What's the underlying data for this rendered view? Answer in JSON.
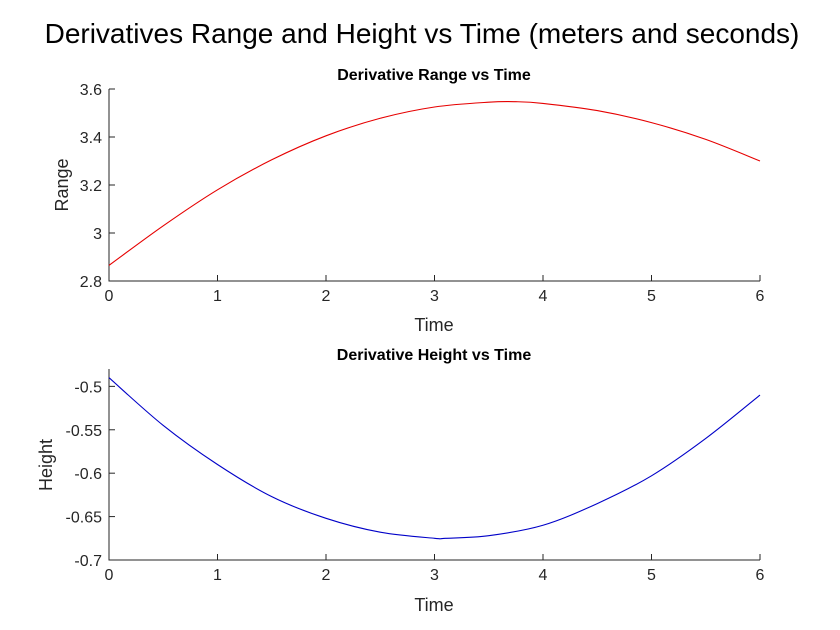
{
  "figure": {
    "title": "Derivatives Range and Height vs Time (meters and seconds)"
  },
  "chart_data": [
    {
      "type": "line",
      "title": "Derivative Range vs Time",
      "xlabel": "Time",
      "ylabel": "Range",
      "xlim": [
        0,
        6
      ],
      "ylim": [
        2.8,
        3.6
      ],
      "xticks": [
        0,
        1,
        2,
        3,
        4,
        5,
        6
      ],
      "xtick_labels": [
        "0",
        "1",
        "2",
        "3",
        "4",
        "5",
        "6"
      ],
      "yticks": [
        2.8,
        3.0,
        3.2,
        3.4,
        3.6
      ],
      "ytick_labels": [
        "2.8",
        "3",
        "3.2",
        "3.4",
        "3.6"
      ],
      "grid": false,
      "series": [
        {
          "color": "#e60000",
          "x": [
            0,
            0.5,
            1,
            1.5,
            2,
            2.5,
            3,
            3.5,
            3.75,
            4,
            4.5,
            5,
            5.5,
            6
          ],
          "y": [
            2.865,
            3.03,
            3.18,
            3.305,
            3.405,
            3.478,
            3.525,
            3.545,
            3.547,
            3.54,
            3.51,
            3.46,
            3.39,
            3.3
          ]
        }
      ]
    },
    {
      "type": "line",
      "title": "Derivative Height vs Time",
      "xlabel": "Time",
      "ylabel": "Height",
      "xlim": [
        0,
        6
      ],
      "ylim": [
        -0.7,
        -0.48
      ],
      "xticks": [
        0,
        1,
        2,
        3,
        4,
        5,
        6
      ],
      "xtick_labels": [
        "0",
        "1",
        "2",
        "3",
        "4",
        "5",
        "6"
      ],
      "yticks": [
        -0.7,
        -0.65,
        -0.6,
        -0.55,
        -0.5
      ],
      "ytick_labels": [
        "-0.7",
        "-0.65",
        "-0.6",
        "-0.55",
        "-0.5"
      ],
      "grid": false,
      "series": [
        {
          "color": "#0000c8",
          "x": [
            0,
            0.5,
            1,
            1.5,
            2,
            2.5,
            3,
            3.1,
            3.5,
            4,
            4.5,
            5,
            5.5,
            6
          ],
          "y": [
            -0.49,
            -0.545,
            -0.59,
            -0.627,
            -0.652,
            -0.668,
            -0.675,
            -0.675,
            -0.672,
            -0.66,
            -0.635,
            -0.603,
            -0.56,
            -0.51
          ]
        }
      ]
    }
  ]
}
